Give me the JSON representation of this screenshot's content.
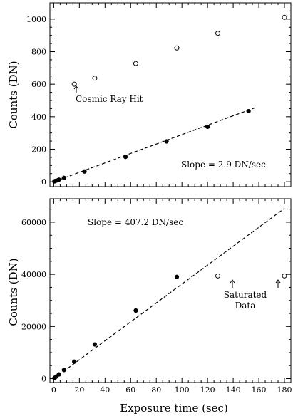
{
  "chart_data": [
    {
      "type": "scatter",
      "title": "",
      "xlabel": "",
      "ylabel": "Counts (DN)",
      "xlim": [
        -3,
        185
      ],
      "ylim": [
        -30,
        1100
      ],
      "xticks": [
        "0",
        "20",
        "40",
        "60",
        "80",
        "100",
        "120",
        "140",
        "160",
        "180"
      ],
      "yticks": [
        "0",
        "200",
        "400",
        "600",
        "800",
        "1000"
      ],
      "series": [
        {
          "marker": "filled",
          "x": [
            0.5,
            1,
            2,
            4,
            8,
            24,
            56,
            88,
            120,
            152
          ],
          "y": [
            2,
            4,
            7,
            13,
            24,
            63,
            153,
            248,
            338,
            434
          ]
        },
        {
          "marker": "open",
          "x": [
            16,
            32,
            64,
            96,
            128,
            180
          ],
          "y": [
            600,
            637,
            727,
            823,
            913,
            1011
          ]
        }
      ],
      "fit_line": {
        "x": [
          0,
          158
        ],
        "y": [
          0,
          458
        ]
      },
      "annotations": [
        {
          "text": "Cosmic Ray Hit",
          "arrow_to_x": 16,
          "arrow_to_y": 600
        },
        {
          "text": "Slope = 2.9 DN/sec"
        }
      ]
    },
    {
      "type": "scatter",
      "title": "",
      "xlabel": "Exposure time (sec)",
      "ylabel": "Counts (DN)",
      "xlim": [
        -3,
        185
      ],
      "ylim": [
        -1500,
        69000
      ],
      "xticks": [
        "0",
        "20",
        "40",
        "60",
        "80",
        "100",
        "120",
        "140",
        "160",
        "180"
      ],
      "yticks": [
        "0",
        "20000",
        "40000",
        "60000"
      ],
      "series": [
        {
          "marker": "filled",
          "x": [
            0.5,
            1,
            2,
            4,
            8,
            16,
            32,
            64,
            96
          ],
          "y": [
            200,
            400,
            800,
            1600,
            3300,
            6500,
            13100,
            26100,
            39000
          ]
        },
        {
          "marker": "open",
          "x": [
            128,
            180
          ],
          "y": [
            39400,
            39400
          ]
        }
      ],
      "fit_line": {
        "x": [
          0,
          180
        ],
        "y": [
          0,
          65300
        ]
      },
      "annotations": [
        {
          "text": "Slope = 407.2 DN/sec"
        },
        {
          "text": "Saturated"
        },
        {
          "text": "Data"
        }
      ]
    }
  ]
}
